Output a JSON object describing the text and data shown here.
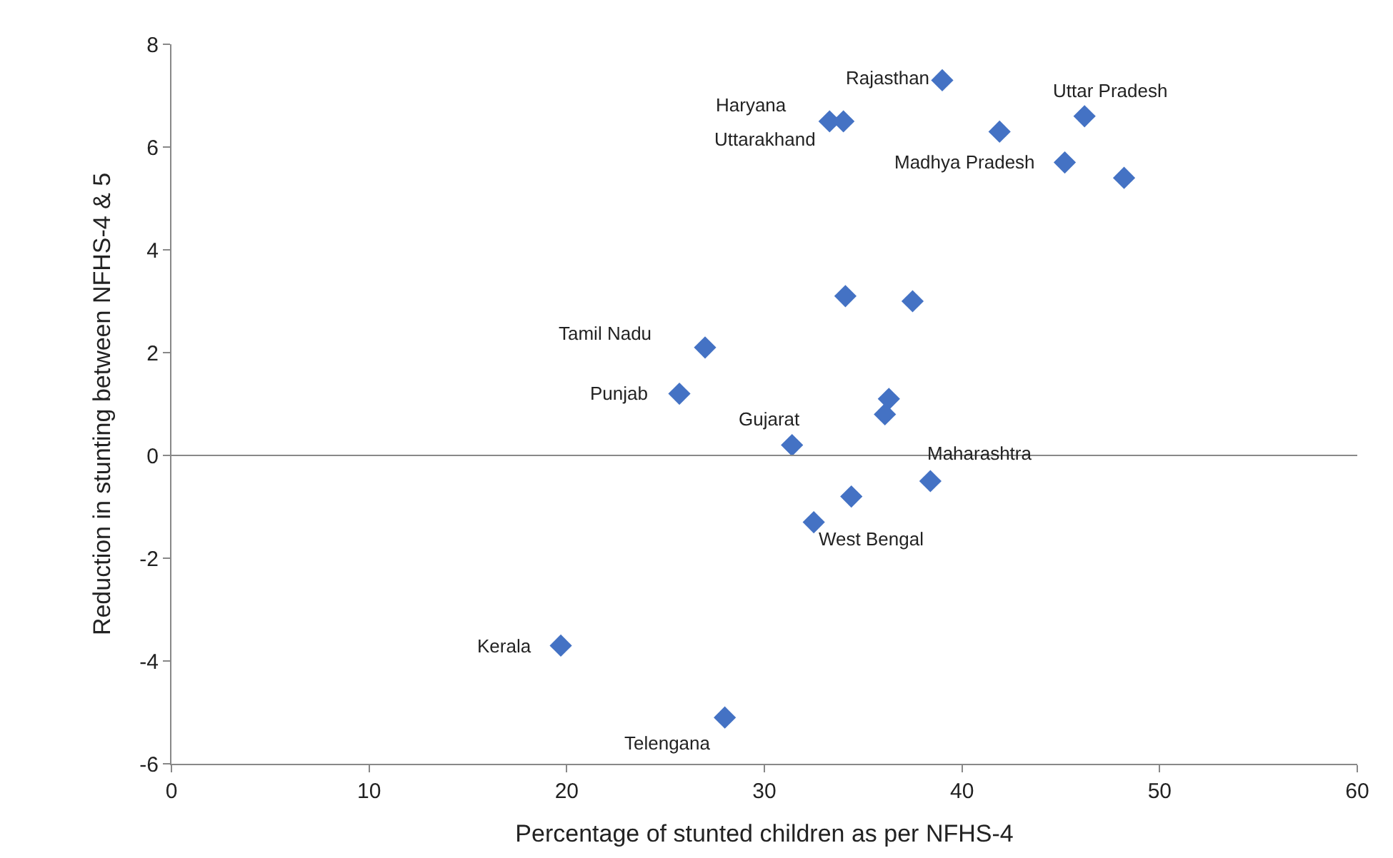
{
  "chart_data": {
    "type": "scatter",
    "xlabel": "Percentage of stunted children as per NFHS-4",
    "ylabel": "Reduction in stunting between NFHS-4 & 5",
    "x": [
      39.0,
      33.3,
      34.0,
      41.9,
      46.2,
      45.2,
      48.2,
      34.1,
      37.5,
      27.0,
      25.7,
      36.3,
      36.1,
      31.4,
      38.4,
      34.4,
      32.5,
      19.7,
      28.0
    ],
    "series": [
      {
        "color": "#4472c4",
        "values": [
          7.3,
          6.5,
          6.5,
          6.3,
          6.6,
          5.7,
          5.4,
          3.1,
          3.0,
          2.1,
          1.2,
          1.1,
          0.8,
          0.2,
          -0.5,
          -0.8,
          -1.3,
          -3.7,
          -5.1
        ]
      }
    ],
    "xlim": [
      0,
      60
    ],
    "xticks": [
      0,
      10,
      20,
      30,
      40,
      50,
      60
    ],
    "ylim": [
      -6,
      8
    ],
    "yticks": [
      -6,
      -4,
      -2,
      0,
      2,
      4,
      6,
      8
    ],
    "ref_lines": [
      {
        "axis": "y",
        "value": 0,
        "color": "#888888"
      }
    ],
    "marker": "diamond",
    "annotations": [
      {
        "text": "Rajasthan",
        "x": 39.0,
        "y": 7.3
      },
      {
        "text": "Haryana",
        "x": 33.3,
        "y": 6.5
      },
      {
        "text": "Uttarakhand",
        "x": 34.0,
        "y": 6.5
      },
      {
        "text": "Uttar Pradesh",
        "x": 46.2,
        "y": 6.6
      },
      {
        "text": "Madhya Pradesh",
        "x": 45.2,
        "y": 5.7
      },
      {
        "text": "Tamil Nadu",
        "x": 27.0,
        "y": 2.1
      },
      {
        "text": "Punjab",
        "x": 25.7,
        "y": 1.2
      },
      {
        "text": "Gujarat",
        "x": 31.4,
        "y": 0.2
      },
      {
        "text": "Maharashtra",
        "x": 38.4,
        "y": -0.5
      },
      {
        "text": "West Bengal",
        "x": 32.5,
        "y": -1.3
      },
      {
        "text": "Kerala",
        "x": 19.7,
        "y": -3.7
      },
      {
        "text": "Telengana",
        "x": 28.0,
        "y": -5.1
      }
    ]
  }
}
